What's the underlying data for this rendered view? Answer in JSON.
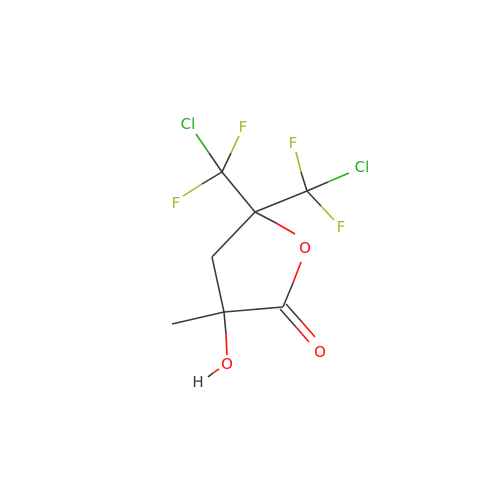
{
  "molecule": {
    "colors": {
      "carbon_bond": "#3a3a3a",
      "chlorine": "#1fb01f",
      "fluorine": "#a6b82c",
      "oxygen": "#ff0d0d",
      "hydrogen": "#3a3a3a",
      "background": "#ffffff"
    },
    "atom_labels": {
      "cl_left": "Cl",
      "f_top_left": "F",
      "f_left": "F",
      "f_top_right": "F",
      "cl_right": "Cl",
      "f_right": "F",
      "o_ring": "O",
      "o_carbonyl": "O",
      "o_hydroxyl": "O",
      "h_hydroxyl": "H"
    }
  }
}
